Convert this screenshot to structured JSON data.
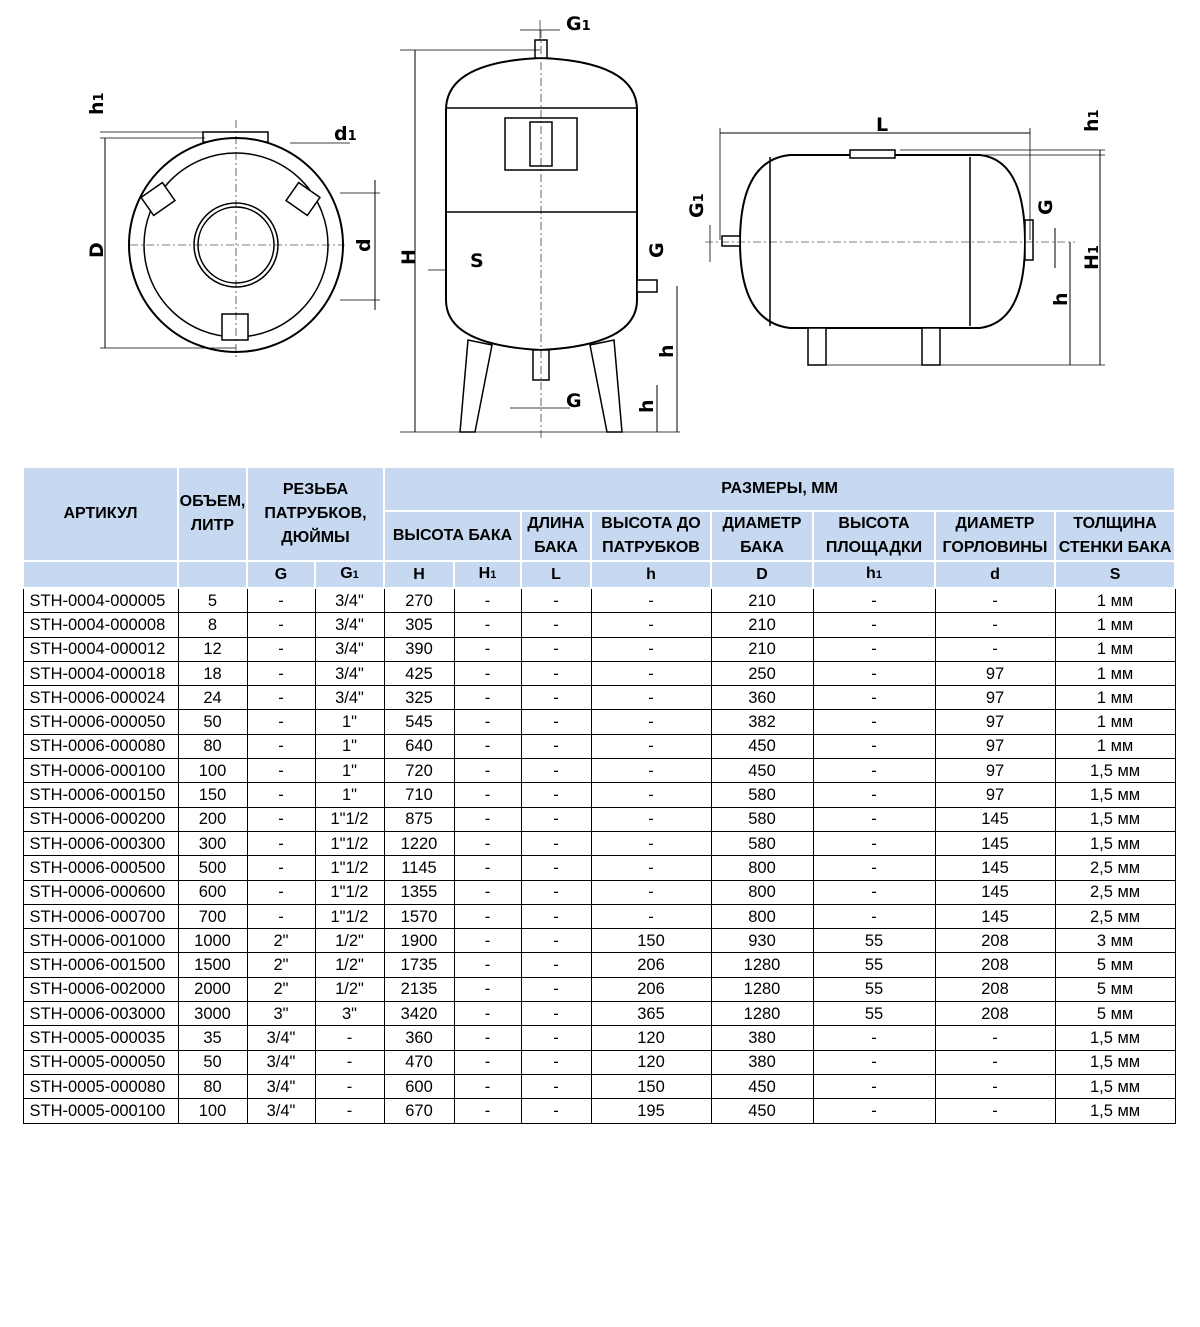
{
  "drawings": {
    "front_view": {
      "h1": "h1",
      "d1": "d1",
      "D": "D",
      "d": "d"
    },
    "vertical_tank": {
      "G1": "G1",
      "H": "H",
      "S": "S",
      "G_side": "G",
      "h_side": "h",
      "h_bottom": "h",
      "G_bottom": "G"
    },
    "horizontal_tank": {
      "L": "L",
      "h1": "h1",
      "G": "G",
      "G1": "G1",
      "H1": "H1",
      "h": "h"
    }
  },
  "table": {
    "header": {
      "article": "АРТИКУЛ",
      "volume": "ОБЪЕМ, ЛИТР",
      "thread": "РЕЗЬБА ПАТРУБКОВ, ДЮЙМЫ",
      "dimensions": "РАЗМЕРЫ, ММ",
      "groups": [
        "ВЫСОТА БАКА",
        "ДЛИНА БАКА",
        "ВЫСОТА ДО ПАТРУБКОВ",
        "ДИАМЕТР БАКА",
        "ВЫСОТА ПЛОЩАДКИ",
        "ДИАМЕТР ГОРЛОВИНЫ",
        "ТОЛЩИНА СТЕНКИ БАКА"
      ],
      "symbols": [
        "G",
        "G1",
        "H",
        "H1",
        "L",
        "h",
        "D",
        "h1",
        "d",
        "S"
      ]
    },
    "rows": [
      [
        "STH-0004-000005",
        "5",
        "-",
        "3/4\"",
        "270",
        "-",
        "-",
        "-",
        "210",
        "-",
        "-",
        "1 мм"
      ],
      [
        "STH-0004-000008",
        "8",
        "-",
        "3/4\"",
        "305",
        "-",
        "-",
        "-",
        "210",
        "-",
        "-",
        "1 мм"
      ],
      [
        "STH-0004-000012",
        "12",
        "-",
        "3/4\"",
        "390",
        "-",
        "-",
        "-",
        "210",
        "-",
        "-",
        "1 мм"
      ],
      [
        "STH-0004-000018",
        "18",
        "-",
        "3/4\"",
        "425",
        "-",
        "-",
        "-",
        "250",
        "-",
        "97",
        "1 мм"
      ],
      [
        "STH-0006-000024",
        "24",
        "-",
        "3/4\"",
        "325",
        "-",
        "-",
        "-",
        "360",
        "-",
        "97",
        "1 мм"
      ],
      [
        "STH-0006-000050",
        "50",
        "-",
        "1\"",
        "545",
        "-",
        "-",
        "-",
        "382",
        "-",
        "97",
        "1 мм"
      ],
      [
        "STH-0006-000080",
        "80",
        "-",
        "1\"",
        "640",
        "-",
        "-",
        "-",
        "450",
        "-",
        "97",
        "1 мм"
      ],
      [
        "STH-0006-000100",
        "100",
        "-",
        "1\"",
        "720",
        "-",
        "-",
        "-",
        "450",
        "-",
        "97",
        "1,5 мм"
      ],
      [
        "STH-0006-000150",
        "150",
        "-",
        "1\"",
        "710",
        "-",
        "-",
        "-",
        "580",
        "-",
        "97",
        "1,5 мм"
      ],
      [
        "STH-0006-000200",
        "200",
        "-",
        "1\"1/2",
        "875",
        "-",
        "-",
        "-",
        "580",
        "-",
        "145",
        "1,5 мм"
      ],
      [
        "STH-0006-000300",
        "300",
        "-",
        "1\"1/2",
        "1220",
        "-",
        "-",
        "-",
        "580",
        "-",
        "145",
        "1,5 мм"
      ],
      [
        "STH-0006-000500",
        "500",
        "-",
        "1\"1/2",
        "1145",
        "-",
        "-",
        "-",
        "800",
        "-",
        "145",
        "2,5 мм"
      ],
      [
        "STH-0006-000600",
        "600",
        "-",
        "1\"1/2",
        "1355",
        "-",
        "-",
        "-",
        "800",
        "-",
        "145",
        "2,5 мм"
      ],
      [
        "STH-0006-000700",
        "700",
        "-",
        "1\"1/2",
        "1570",
        "-",
        "-",
        "-",
        "800",
        "-",
        "145",
        "2,5 мм"
      ],
      [
        "STH-0006-001000",
        "1000",
        "2\"",
        "1/2\"",
        "1900",
        "-",
        "-",
        "150",
        "930",
        "55",
        "208",
        "3 мм"
      ],
      [
        "STH-0006-001500",
        "1500",
        "2\"",
        "1/2\"",
        "1735",
        "-",
        "-",
        "206",
        "1280",
        "55",
        "208",
        "5 мм"
      ],
      [
        "STH-0006-002000",
        "2000",
        "2\"",
        "1/2\"",
        "2135",
        "-",
        "-",
        "206",
        "1280",
        "55",
        "208",
        "5 мм"
      ],
      [
        "STH-0006-003000",
        "3000",
        "3\"",
        "3\"",
        "3420",
        "-",
        "-",
        "365",
        "1280",
        "55",
        "208",
        "5 мм"
      ],
      [
        "STH-0005-000035",
        "35",
        "3/4\"",
        "-",
        "360",
        "-",
        "-",
        "120",
        "380",
        "-",
        "-",
        "1,5 мм"
      ],
      [
        "STH-0005-000050",
        "50",
        "3/4\"",
        "-",
        "470",
        "-",
        "-",
        "120",
        "380",
        "-",
        "-",
        "1,5 мм"
      ],
      [
        "STH-0005-000080",
        "80",
        "3/4\"",
        "-",
        "600",
        "-",
        "-",
        "150",
        "450",
        "-",
        "-",
        "1,5 мм"
      ],
      [
        "STH-0005-000100",
        "100",
        "3/4\"",
        "-",
        "670",
        "-",
        "-",
        "195",
        "450",
        "-",
        "-",
        "1,5 мм"
      ]
    ]
  },
  "colors": {
    "header_bg": "#c6d9f1",
    "line": "#000000"
  }
}
